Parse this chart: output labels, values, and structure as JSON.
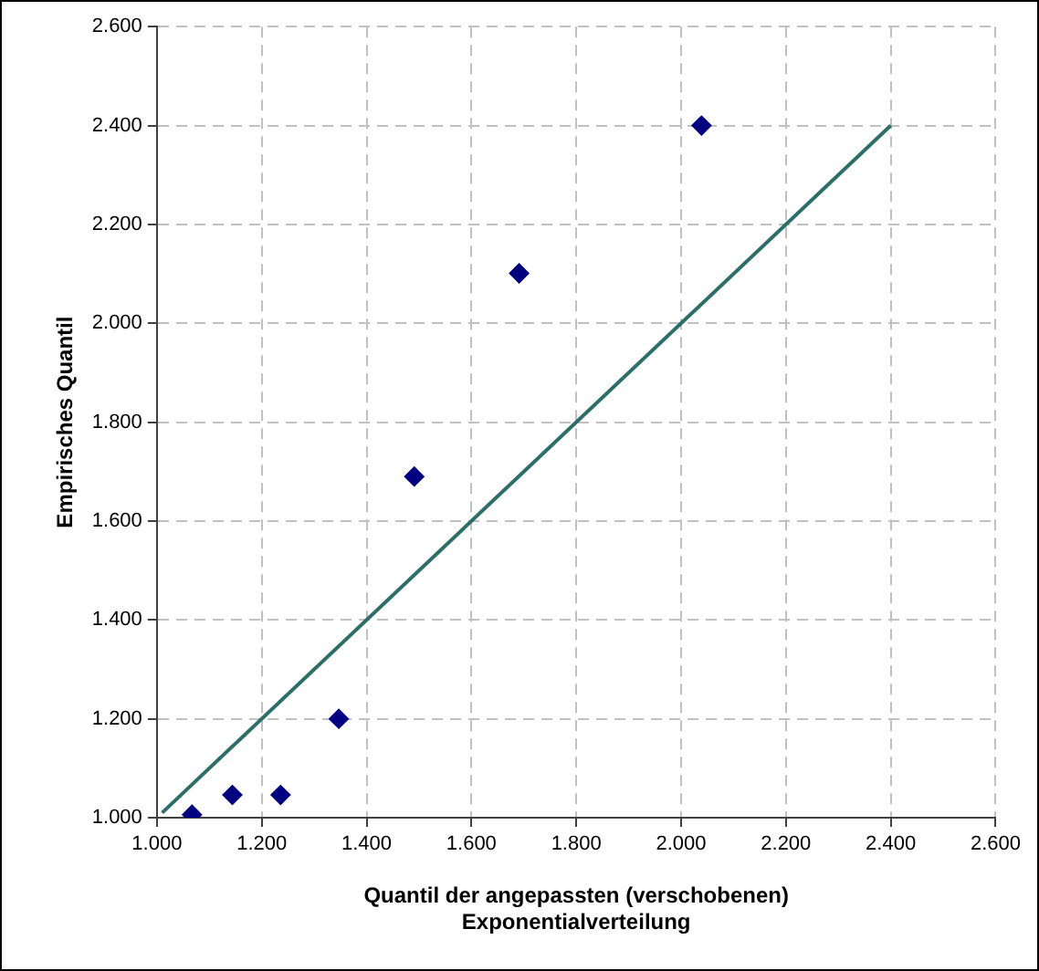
{
  "chart_data": {
    "type": "scatter",
    "xlabel": "Quantil der angepassten (verschobenen)\nExponentialverteilung",
    "ylabel": "Empirisches Quantil",
    "x": [
      1.067,
      1.144,
      1.236,
      1.347,
      1.491,
      1.691,
      2.039
    ],
    "series": [
      {
        "color": "#000080",
        "marker": "diamond",
        "values": [
          1.006,
          1.046,
          1.046,
          1.2,
          1.69,
          2.101,
          2.4
        ]
      },
      {
        "type": "line",
        "color": "#2e6e68",
        "marker": "none",
        "x": [
          1.01,
          2.4
        ],
        "values": [
          1.01,
          2.4
        ]
      }
    ],
    "xlim": [
      1,
      2.6
    ],
    "ylim": [
      1,
      2.6
    ],
    "xticks": [
      {
        "value": 1,
        "label": "1.000"
      },
      {
        "value": 1.2,
        "label": "1.200"
      },
      {
        "value": 1.4,
        "label": "1.400"
      },
      {
        "value": 1.6,
        "label": "1.600"
      },
      {
        "value": 1.8,
        "label": "1.800"
      },
      {
        "value": 2,
        "label": "2.000"
      },
      {
        "value": 2.2,
        "label": "2.200"
      },
      {
        "value": 2.4,
        "label": "2.400"
      },
      {
        "value": 2.6,
        "label": "2.600"
      }
    ],
    "yticks": [
      {
        "value": 1,
        "label": "1.000"
      },
      {
        "value": 1.2,
        "label": "1.200"
      },
      {
        "value": 1.4,
        "label": "1.400"
      },
      {
        "value": 1.6,
        "label": "1.600"
      },
      {
        "value": 1.8,
        "label": "1.800"
      },
      {
        "value": 2,
        "label": "2.000"
      },
      {
        "value": 2.2,
        "label": "2.200"
      },
      {
        "value": 2.4,
        "label": "2.400"
      },
      {
        "value": 2.6,
        "label": "2.600"
      }
    ],
    "grid": true,
    "legend": false
  }
}
